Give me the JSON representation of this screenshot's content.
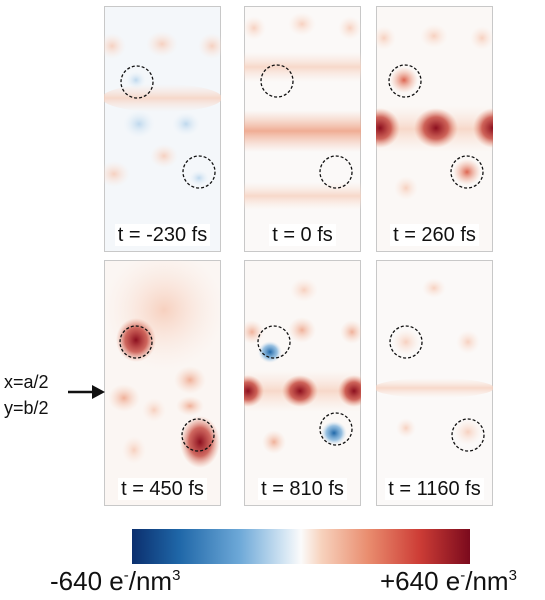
{
  "panels": [
    {
      "time_label": "t = -230 fs"
    },
    {
      "time_label": "t = 0 fs"
    },
    {
      "time_label": "t = 260 fs"
    },
    {
      "time_label": "t = 450 fs"
    },
    {
      "time_label": "t = 810 fs"
    },
    {
      "time_label": "t = 1160 fs"
    }
  ],
  "position_marker": {
    "line1": "x=a/2",
    "line2": "y=b/2"
  },
  "colorbar": {
    "min_value": "-640 e",
    "min_superscript": "-",
    "min_unit": "/nm",
    "min_unit_power": "3",
    "max_value": "+640 e",
    "max_superscript": "-",
    "max_unit": "/nm",
    "max_unit_power": "3",
    "colors": {
      "negative": "#0b2f6e",
      "zero": "#fbfbfb",
      "positive": "#7b0a1d"
    }
  }
}
